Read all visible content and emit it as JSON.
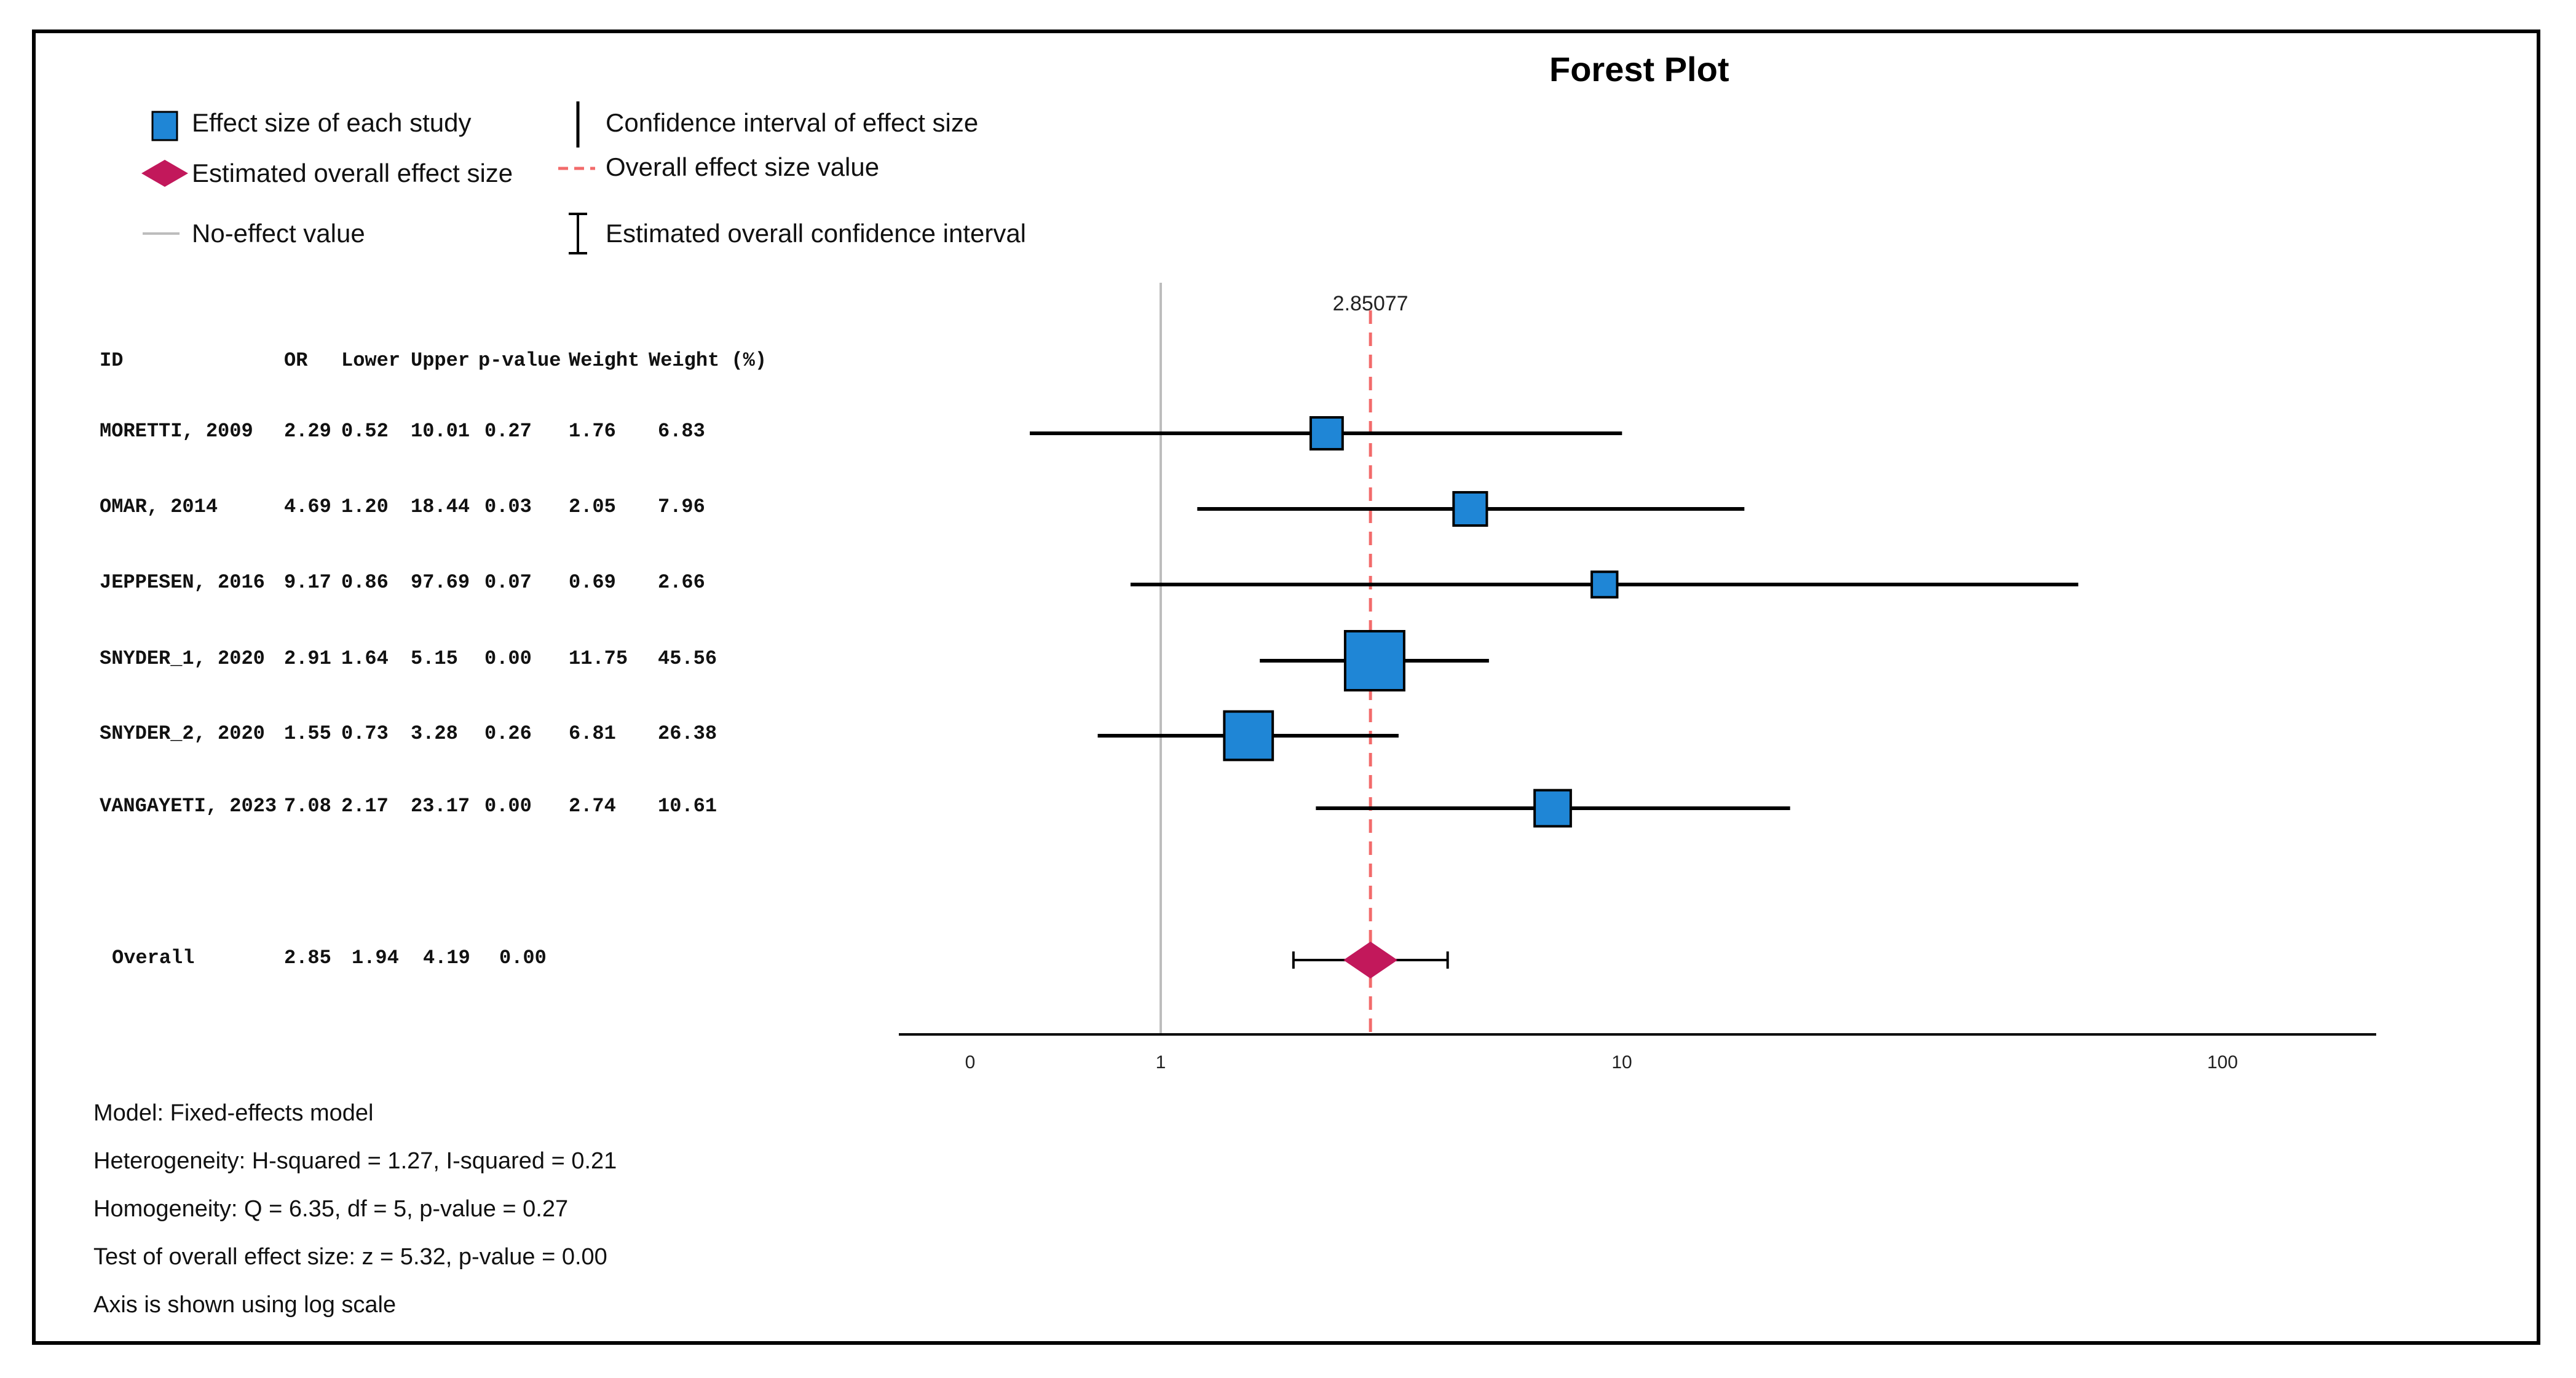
{
  "chart_data": {
    "type": "forest",
    "title": "Forest Plot",
    "scale": "log",
    "x_ticks": [
      "0",
      "1",
      "10",
      "100"
    ],
    "overall_effect_label": "2.85077",
    "no_effect_value": 1,
    "columns": [
      "ID",
      "OR",
      "Lower",
      "Upper",
      "p-value",
      "Weight",
      "Weight (%)"
    ],
    "studies": [
      {
        "id": "MORETTI, 2009",
        "or": "2.29",
        "lower": "0.52",
        "upper": "10.01",
        "p": "0.27",
        "weight": "1.76",
        "weight_pct": "6.83"
      },
      {
        "id": "OMAR, 2014",
        "or": "4.69",
        "lower": "1.20",
        "upper": "18.44",
        "p": "0.03",
        "weight": "2.05",
        "weight_pct": "7.96"
      },
      {
        "id": "JEPPESEN, 2016",
        "or": "9.17",
        "lower": "0.86",
        "upper": "97.69",
        "p": "0.07",
        "weight": "0.69",
        "weight_pct": "2.66"
      },
      {
        "id": "SNYDER_1, 2020",
        "or": "2.91",
        "lower": "1.64",
        "upper": "5.15",
        "p": "0.00",
        "weight": "11.75",
        "weight_pct": "45.56"
      },
      {
        "id": "SNYDER_2, 2020",
        "or": "1.55",
        "lower": "0.73",
        "upper": "3.28",
        "p": "0.26",
        "weight": "6.81",
        "weight_pct": "26.38"
      },
      {
        "id": "VANGAYETI, 2023",
        "or": "7.08",
        "lower": "2.17",
        "upper": "23.17",
        "p": "0.00",
        "weight": "2.74",
        "weight_pct": "10.61"
      }
    ],
    "overall": {
      "id": "Overall",
      "or": "2.85",
      "lower": "1.94",
      "upper": "4.19",
      "p": "0.00"
    }
  },
  "legend": {
    "effect_size": "Effect size of each study",
    "estimated_overall": "Estimated overall effect size",
    "no_effect": "No-effect value",
    "ci": "Confidence interval of effect size",
    "overall_value": "Overall effect size value",
    "overall_ci": "Estimated overall confidence interval"
  },
  "stats": {
    "model": "Model: Fixed-effects model",
    "heterogeneity": "Heterogeneity: H-squared = 1.27, I-squared = 0.21",
    "homogeneity": "Homogeneity: Q = 6.35, df = 5, p-value = 0.27",
    "overall_test": "Test of overall effect size:  z = 5.32, p-value = 0.00",
    "axis_note": "Axis is shown using log scale"
  },
  "colors": {
    "square": "#1f86d6",
    "diamond": "#c2185b",
    "overall_line": "#f26b6b",
    "no_effect_line": "#bdbdbd"
  }
}
